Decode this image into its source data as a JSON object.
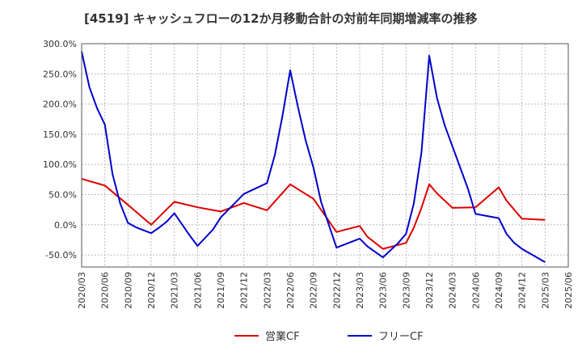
{
  "chart_data": {
    "type": "line",
    "title": "[4519]  キャッシュフローの12か月移動合計の対前年同期増減率の推移",
    "xlabel": "",
    "ylabel": "",
    "ylim": [
      -70,
      300
    ],
    "y_ticks": [
      "300.0%",
      "250.0%",
      "200.0%",
      "150.0%",
      "100.0%",
      "50.0%",
      "0.0%",
      "-50.0%"
    ],
    "y_tick_values": [
      300,
      250,
      200,
      150,
      100,
      50,
      0,
      -50
    ],
    "x_ticks": [
      "2020/03",
      "2020/06",
      "2020/09",
      "2020/12",
      "2021/03",
      "2021/06",
      "2021/09",
      "2021/12",
      "2022/03",
      "2022/06",
      "2022/09",
      "2022/12",
      "2023/03",
      "2023/06",
      "2023/09",
      "2023/12",
      "2024/03",
      "2024/06",
      "2024/09",
      "2024/12",
      "2025/03",
      "2025/06"
    ],
    "grid": true,
    "legend_position": "bottom-center",
    "series": [
      {
        "name": "営業CF",
        "color": "#dd0000",
        "values": [
          [
            0,
            76
          ],
          [
            3,
            65
          ],
          [
            6,
            33
          ],
          [
            9,
            0
          ],
          [
            12,
            38
          ],
          [
            15,
            29
          ],
          [
            18,
            22
          ],
          [
            21,
            36
          ],
          [
            24,
            24
          ],
          [
            27,
            67
          ],
          [
            30,
            43
          ],
          [
            33,
            -12
          ],
          [
            36,
            -2
          ],
          [
            37,
            -20
          ],
          [
            39,
            -40
          ],
          [
            42,
            -30
          ],
          [
            43,
            -5
          ],
          [
            44,
            28
          ],
          [
            45,
            67
          ],
          [
            46,
            52
          ],
          [
            48,
            28
          ],
          [
            51,
            29
          ],
          [
            54,
            62
          ],
          [
            55,
            40
          ],
          [
            56,
            25
          ],
          [
            57,
            10
          ],
          [
            60,
            8
          ]
        ]
      },
      {
        "name": "フリーCF",
        "color": "#0000cc",
        "values": [
          [
            0,
            287
          ],
          [
            1,
            228
          ],
          [
            2,
            193
          ],
          [
            3,
            166
          ],
          [
            4,
            84
          ],
          [
            5,
            35
          ],
          [
            6,
            3
          ],
          [
            7,
            -4
          ],
          [
            9,
            -14
          ],
          [
            10,
            -5
          ],
          [
            11,
            5
          ],
          [
            12,
            19
          ],
          [
            14,
            -18
          ],
          [
            15,
            -35
          ],
          [
            17,
            -8
          ],
          [
            18,
            12
          ],
          [
            21,
            51
          ],
          [
            24,
            69
          ],
          [
            25,
            115
          ],
          [
            26,
            180
          ],
          [
            27,
            256
          ],
          [
            28,
            195
          ],
          [
            29,
            140
          ],
          [
            30,
            95
          ],
          [
            31,
            38
          ],
          [
            33,
            -38
          ],
          [
            36,
            -23
          ],
          [
            37,
            -36
          ],
          [
            39,
            -54
          ],
          [
            41,
            -30
          ],
          [
            42,
            -15
          ],
          [
            43,
            35
          ],
          [
            44,
            120
          ],
          [
            45,
            280
          ],
          [
            46,
            210
          ],
          [
            47,
            165
          ],
          [
            48,
            130
          ],
          [
            50,
            60
          ],
          [
            51,
            18
          ],
          [
            54,
            11
          ],
          [
            55,
            -15
          ],
          [
            56,
            -30
          ],
          [
            57,
            -40
          ],
          [
            60,
            -62
          ]
        ]
      }
    ]
  }
}
